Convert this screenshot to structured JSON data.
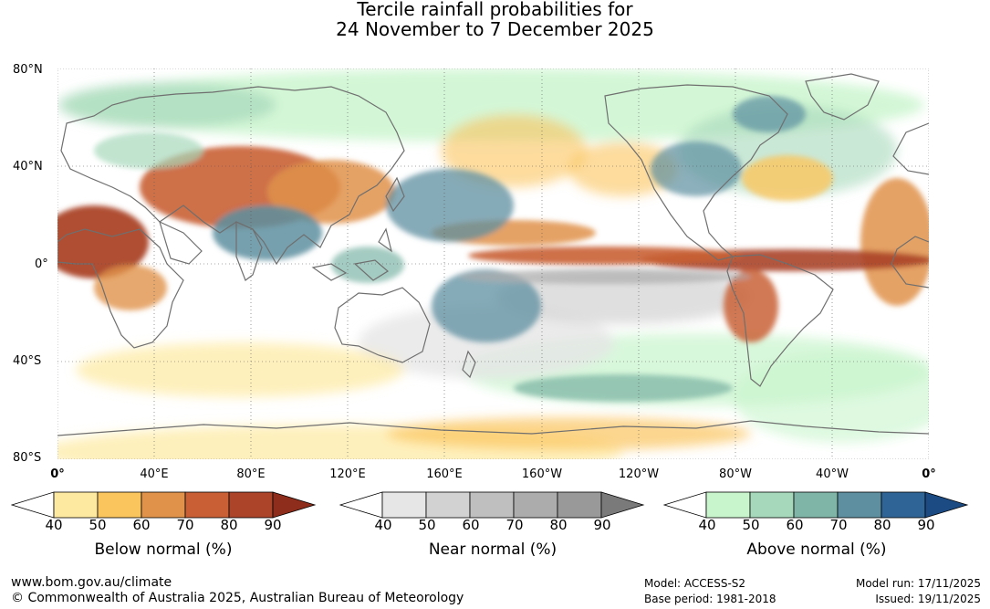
{
  "title_line1": "Tercile rainfall probabilities for",
  "title_line2": "24 November to 7 December 2025",
  "map": {
    "lat_labels": [
      "80°N",
      "40°N",
      "0°",
      "40°S",
      "80°S"
    ],
    "lon_labels": [
      "0°",
      "40°E",
      "80°E",
      "120°E",
      "160°E",
      "160°W",
      "120°W",
      "80°W",
      "40°W",
      "0°"
    ]
  },
  "legends": [
    {
      "label": "Below normal (%)",
      "ticks": [
        "40",
        "50",
        "60",
        "70",
        "80",
        "90"
      ],
      "colors": [
        "#ffffff",
        "#fdeaa0",
        "#fbc55e",
        "#e0924a",
        "#c96035",
        "#ab4428",
        "#8e2d1b"
      ]
    },
    {
      "label": "Near normal (%)",
      "ticks": [
        "40",
        "50",
        "60",
        "70",
        "80",
        "90"
      ],
      "colors": [
        "#ffffff",
        "#e6e6e6",
        "#d2d2d2",
        "#bfbfbf",
        "#acacac",
        "#999999",
        "#7a7a7a"
      ]
    },
    {
      "label": "Above normal (%)",
      "ticks": [
        "40",
        "50",
        "60",
        "70",
        "80",
        "90"
      ],
      "colors": [
        "#ffffff",
        "#c8f5cc",
        "#a6d8bb",
        "#7eb5a6",
        "#5d8fa0",
        "#2f6496",
        "#1b4b82"
      ]
    }
  ],
  "footer": {
    "url": "www.bom.gov.au/climate",
    "copyright": "© Commonwealth of Australia 2025, Australian Bureau of Meteorology",
    "model": "Model: ACCESS-S2",
    "base_period": "Base period: 1981-2018",
    "model_run": "Model run: 17/11/2025",
    "issued": "Issued: 19/11/2025"
  }
}
